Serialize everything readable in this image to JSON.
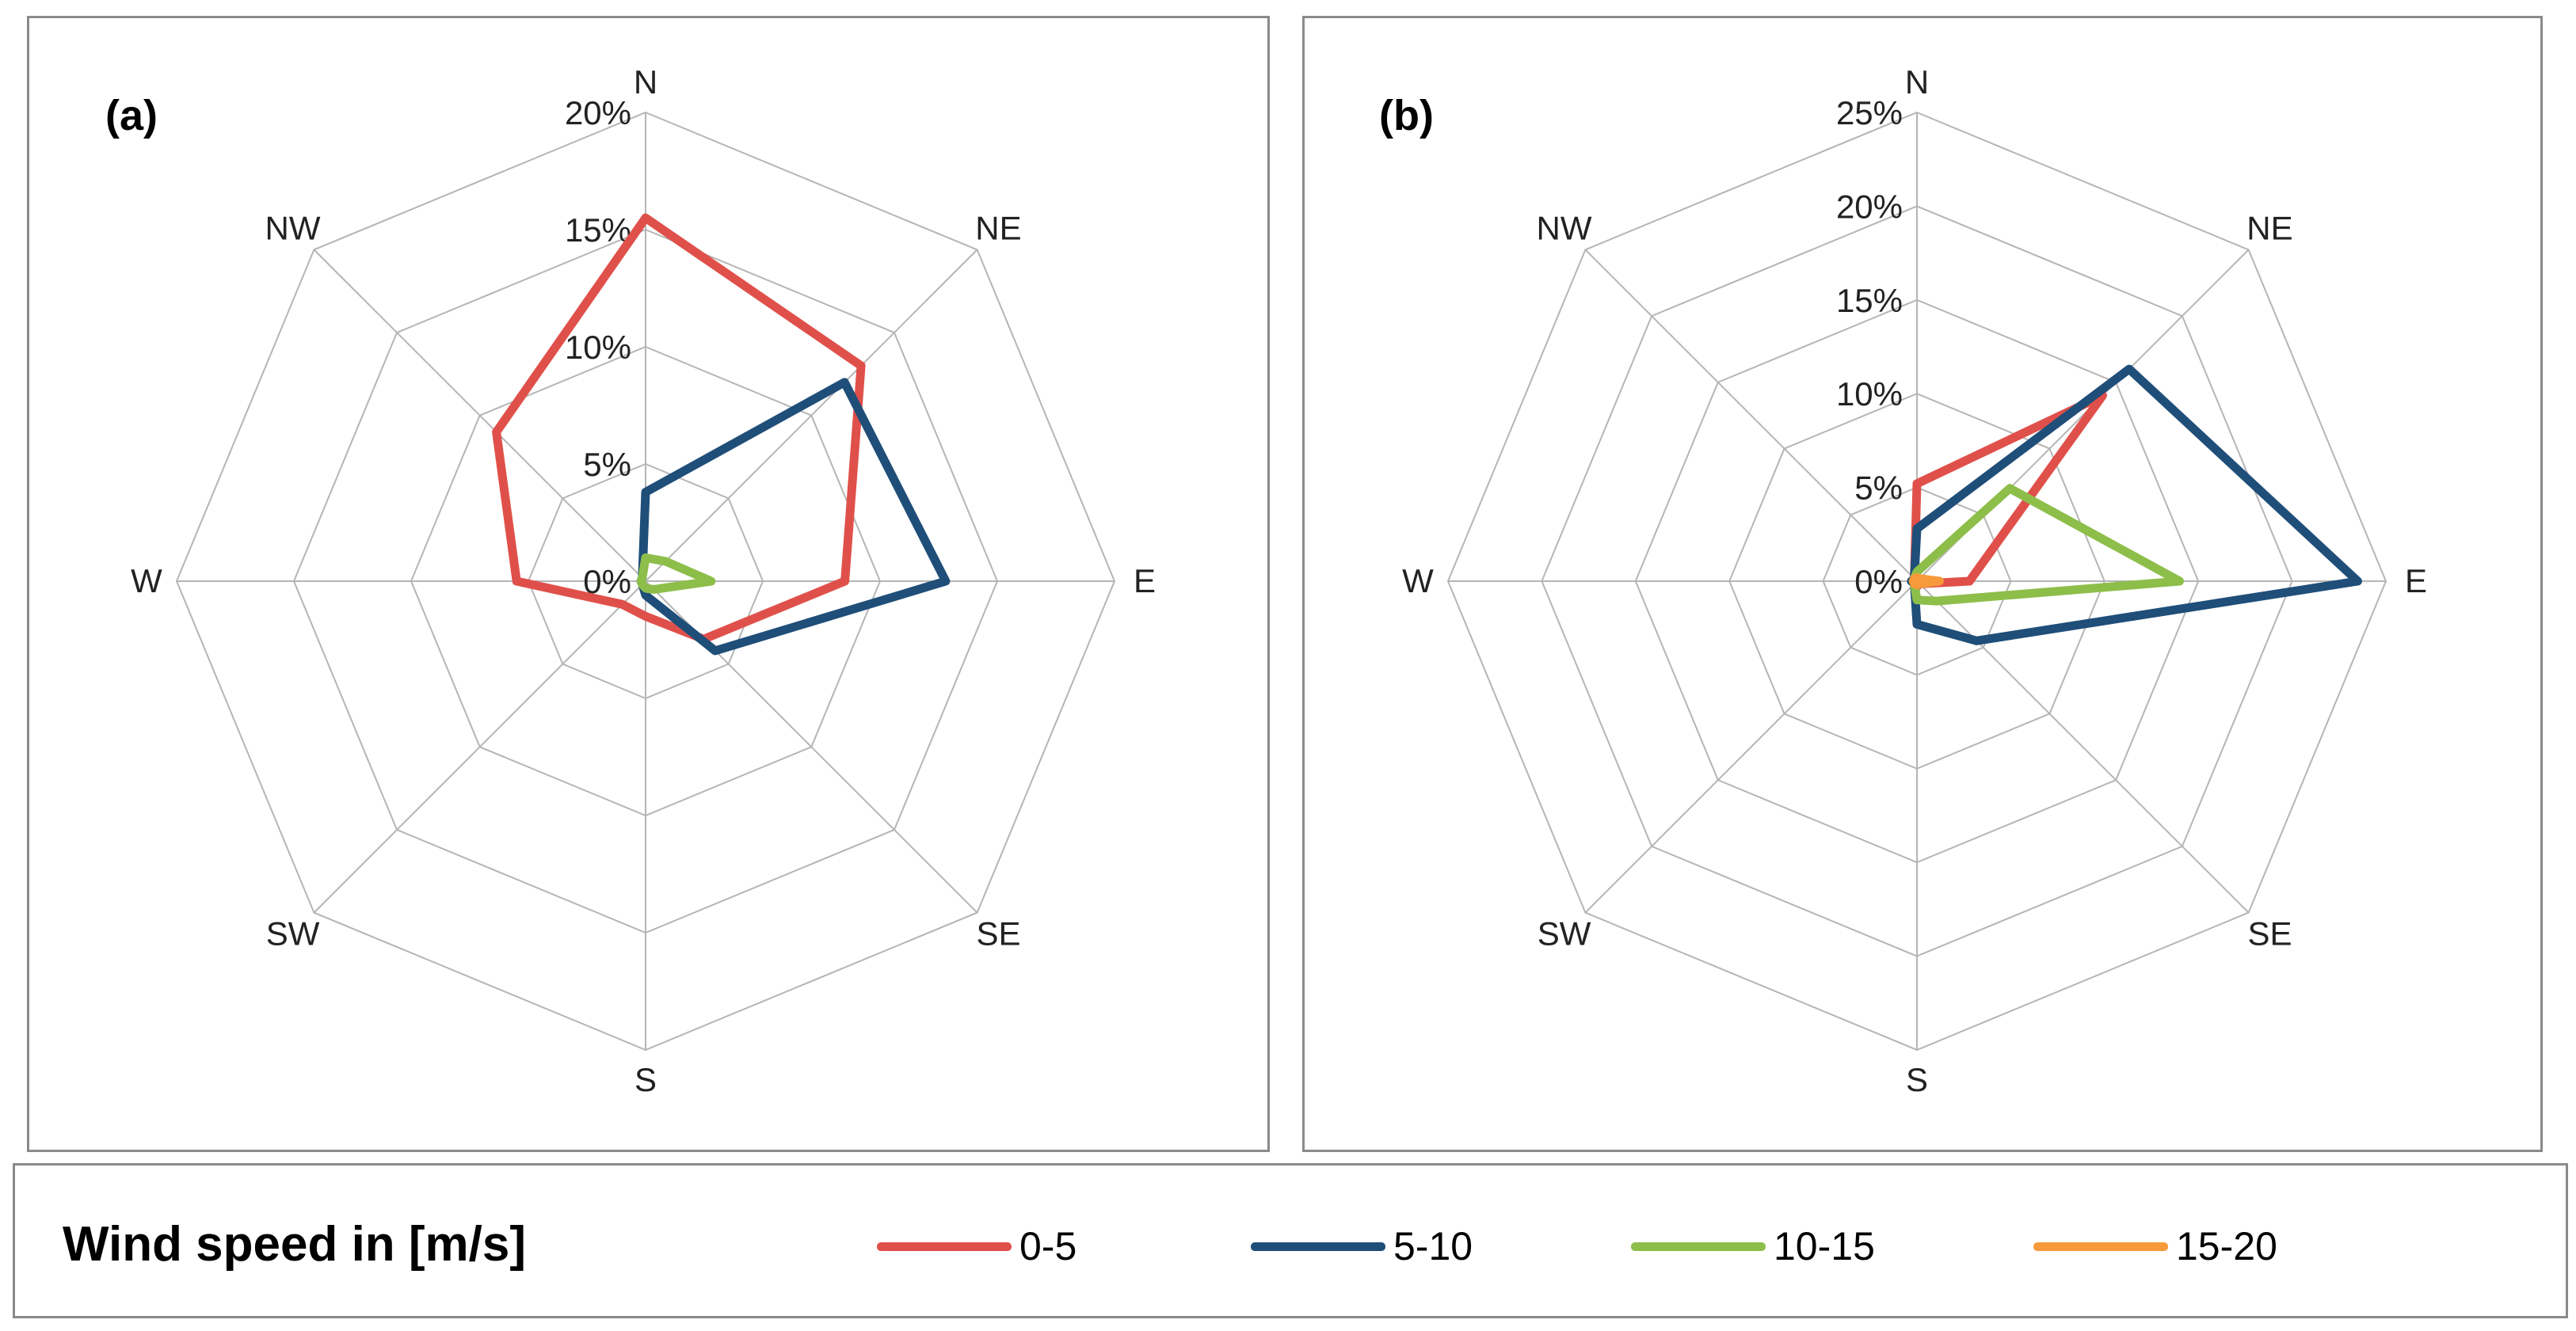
{
  "chart_data": [
    {
      "type": "radar",
      "panel_label": "(a)",
      "directions": [
        "N",
        "NE",
        "E",
        "SE",
        "S",
        "SW",
        "W",
        "NW"
      ],
      "rmax": 20,
      "ticks": [
        "0%",
        "5%",
        "10%",
        "15%",
        "20%"
      ],
      "tick_values": [
        0,
        5,
        10,
        15,
        20
      ],
      "series": [
        {
          "name": "0-5",
          "color": "#E0504A",
          "values": [
            15.5,
            13,
            8.5,
            3.5,
            1.5,
            1.4,
            5.5,
            9
          ]
        },
        {
          "name": "5-10",
          "color": "#1F4E79",
          "values": [
            3.8,
            12,
            12.8,
            4.2,
            0.6,
            0.2,
            0.2,
            0.2
          ]
        },
        {
          "name": "10-15",
          "color": "#8DBE4A",
          "values": [
            1.0,
            1.2,
            2.8,
            0.5,
            0.3,
            0.2,
            0.2,
            0.2
          ]
        },
        {
          "name": "15-20",
          "color": "#F79A3B",
          "values": [
            0,
            0,
            0,
            0,
            0,
            0,
            0,
            0
          ]
        }
      ]
    },
    {
      "type": "radar",
      "panel_label": "(b)",
      "directions": [
        "N",
        "NE",
        "E",
        "SE",
        "S",
        "SW",
        "W",
        "NW"
      ],
      "rmax": 25,
      "ticks": [
        "0%",
        "5%",
        "10%",
        "15%",
        "20%",
        "25%"
      ],
      "tick_values": [
        0,
        5,
        10,
        15,
        20,
        25
      ],
      "series": [
        {
          "name": "0-5",
          "color": "#E0504A",
          "values": [
            5.2,
            14,
            2.8,
            0.2,
            0.3,
            0.2,
            0.3,
            0.2
          ]
        },
        {
          "name": "5-10",
          "color": "#1F4E79",
          "values": [
            2.8,
            16,
            23.5,
            4.5,
            2.3,
            0.2,
            0.3,
            0.2
          ]
        },
        {
          "name": "10-15",
          "color": "#8DBE4A",
          "values": [
            0.5,
            7,
            14,
            1.5,
            1.0,
            0.2,
            0.2,
            0.2
          ]
        },
        {
          "name": "15-20",
          "color": "#F79A3B",
          "values": [
            0.2,
            0.2,
            1.2,
            0.2,
            0.2,
            0.2,
            0.2,
            0.2
          ]
        }
      ]
    }
  ],
  "legend": {
    "title": "Wind speed in [m/s]",
    "items": [
      {
        "label": "0-5",
        "color": "#E0504A"
      },
      {
        "label": "5-10",
        "color": "#1F4E79"
      },
      {
        "label": "10-15",
        "color": "#8DBE4A"
      },
      {
        "label": "15-20",
        "color": "#F79A3B"
      }
    ]
  }
}
